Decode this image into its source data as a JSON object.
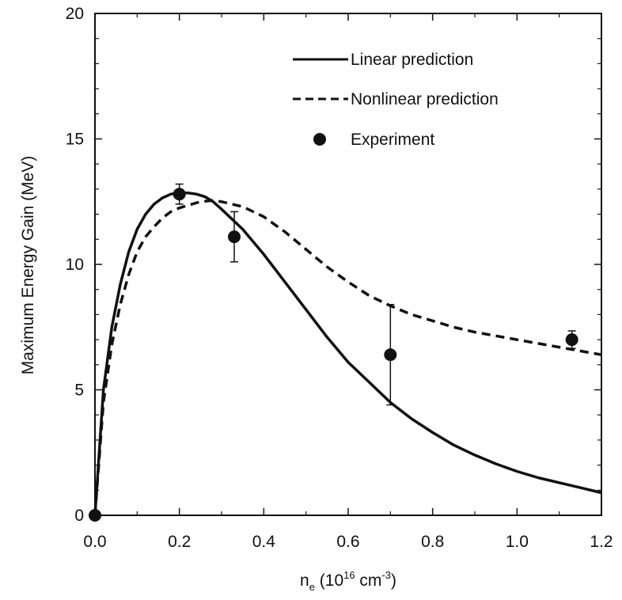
{
  "chart_data": {
    "type": "line",
    "title": "",
    "xlabel": {
      "base": "n",
      "sub": "e",
      "open": " (10",
      "sup1": "16",
      "unit": " cm",
      "sup2": "-3",
      "close": ")"
    },
    "ylabel": "Maximum Energy Gain (MeV)",
    "xlim": [
      0.0,
      1.2
    ],
    "ylim": [
      0,
      20
    ],
    "x_ticks": [
      "0.0",
      "0.2",
      "0.4",
      "0.6",
      "0.8",
      "1.0",
      "1.2"
    ],
    "y_ticks": [
      "0",
      "5",
      "10",
      "15",
      "20"
    ],
    "grid": false,
    "legend_position": "top-right",
    "series": [
      {
        "name": "Linear prediction",
        "style": "solid",
        "color": "#111111",
        "x": [
          0.0,
          0.02,
          0.04,
          0.06,
          0.08,
          0.1,
          0.12,
          0.14,
          0.16,
          0.18,
          0.2,
          0.22,
          0.24,
          0.26,
          0.28,
          0.3,
          0.35,
          0.4,
          0.45,
          0.5,
          0.55,
          0.6,
          0.65,
          0.7,
          0.75,
          0.8,
          0.85,
          0.9,
          0.95,
          1.0,
          1.05,
          1.1,
          1.15,
          1.2
        ],
        "y": [
          0.0,
          5.0,
          7.5,
          9.2,
          10.5,
          11.4,
          12.0,
          12.4,
          12.65,
          12.8,
          12.85,
          12.85,
          12.8,
          12.7,
          12.5,
          12.2,
          11.4,
          10.4,
          9.3,
          8.2,
          7.1,
          6.1,
          5.3,
          4.5,
          3.85,
          3.3,
          2.8,
          2.4,
          2.05,
          1.75,
          1.5,
          1.3,
          1.1,
          0.9
        ]
      },
      {
        "name": "Nonlinear prediction",
        "style": "dashed",
        "color": "#111111",
        "x": [
          0.0,
          0.02,
          0.04,
          0.06,
          0.08,
          0.1,
          0.12,
          0.14,
          0.16,
          0.18,
          0.2,
          0.22,
          0.25,
          0.28,
          0.3,
          0.35,
          0.4,
          0.45,
          0.5,
          0.55,
          0.6,
          0.65,
          0.7,
          0.75,
          0.8,
          0.85,
          0.9,
          0.95,
          1.0,
          1.05,
          1.1,
          1.15,
          1.2
        ],
        "y": [
          0.0,
          4.5,
          6.8,
          8.4,
          9.6,
          10.5,
          11.1,
          11.5,
          11.85,
          12.1,
          12.25,
          12.35,
          12.5,
          12.55,
          12.5,
          12.3,
          11.9,
          11.3,
          10.6,
          9.9,
          9.3,
          8.75,
          8.35,
          8.0,
          7.75,
          7.5,
          7.3,
          7.15,
          7.0,
          6.85,
          6.7,
          6.55,
          6.4
        ]
      },
      {
        "name": "Experiment",
        "style": "markers",
        "color": "#111111",
        "x": [
          0.0,
          0.2,
          0.33,
          0.7,
          1.13
        ],
        "y": [
          0.0,
          12.8,
          11.1,
          6.4,
          7.0
        ],
        "err_low": [
          0.0,
          0.4,
          1.0,
          2.0,
          0.35
        ],
        "err_high": [
          0.0,
          0.4,
          1.0,
          2.0,
          0.35
        ]
      }
    ]
  }
}
